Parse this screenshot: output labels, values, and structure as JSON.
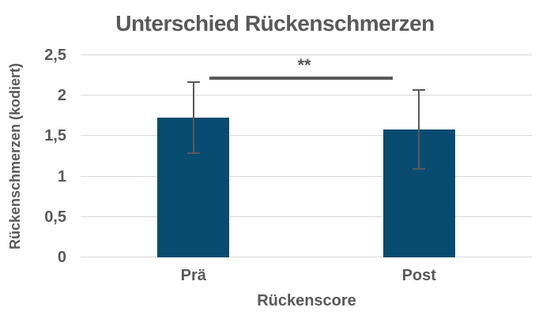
{
  "chart_data": {
    "type": "bar",
    "title": "Unterschied Rückenschmerzen",
    "xlabel": "Rückenscore",
    "ylabel": "Rückenschmerzen (kodiert)",
    "categories": [
      "Prä",
      "Post"
    ],
    "values": [
      1.73,
      1.58
    ],
    "error_bars": [
      0.45,
      0.5
    ],
    "ylim": [
      0,
      2.5
    ],
    "yticks": [
      0,
      0.5,
      1,
      1.5,
      2,
      2.5
    ],
    "ytick_labels": [
      "0",
      "0,5",
      "1",
      "1,5",
      "2",
      "2,5"
    ],
    "grid": true,
    "legend": false,
    "annotation": {
      "text": "**",
      "y_value": 2.22,
      "between": [
        "Prä",
        "Post"
      ]
    },
    "colors": {
      "bar": "#084B70",
      "text": "#595959",
      "gridline": "#D9D9D9",
      "error_bar": "#595959",
      "significance": "#595959",
      "background": "#FFFFFF"
    }
  }
}
